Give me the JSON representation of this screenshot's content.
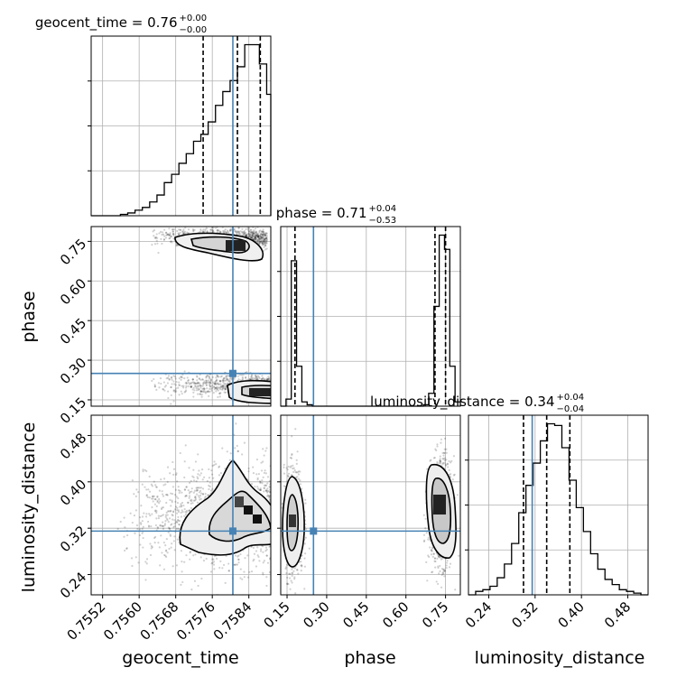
{
  "chart_data": {
    "type": "corner",
    "parameters": [
      {
        "name": "geocent_time",
        "label": "geocent_time",
        "median": "0.76",
        "plus": "+0.00",
        "minus": "−0.00",
        "ticks": [
          "0.7552",
          "0.7560",
          "0.7568",
          "0.7576",
          "0.7584"
        ],
        "range": [
          0.75495,
          0.75888
        ],
        "tick_values": [
          0.7552,
          0.756,
          0.7568,
          0.7576,
          0.7584
        ],
        "truth": 0.75805,
        "quantiles": [
          0.7574,
          0.75815,
          0.75865
        ]
      },
      {
        "name": "phase",
        "label": "phase",
        "median": "0.71",
        "plus": "+0.04",
        "minus": "−0.53",
        "ticks": [
          "0.15",
          "0.30",
          "0.45",
          "0.60",
          "0.75"
        ],
        "range": [
          0.126,
          0.806
        ],
        "tick_values": [
          0.15,
          0.3,
          0.45,
          0.6,
          0.75
        ],
        "truth": 0.25,
        "quantiles": [
          0.18,
          0.71,
          0.75
        ]
      },
      {
        "name": "luminosity_distance",
        "label": "luminosity_distance",
        "median": "0.34",
        "plus": "+0.04",
        "minus": "−0.04",
        "ticks": [
          "0.24",
          "0.32",
          "0.40",
          "0.48"
        ],
        "range": [
          0.205,
          0.515
        ],
        "tick_values": [
          0.24,
          0.32,
          0.4,
          0.48
        ],
        "truth": 0.315,
        "quantiles": [
          0.3,
          0.34,
          0.38
        ]
      }
    ],
    "histograms": [
      {
        "param": "geocent_time",
        "edges": [
          0.75495,
          0.75511,
          0.75527,
          0.75543,
          0.75559,
          0.75575,
          0.75591,
          0.75607,
          0.75623,
          0.75639,
          0.75655,
          0.75671,
          0.75687,
          0.75703,
          0.75719,
          0.75735,
          0.75751,
          0.75767,
          0.75783,
          0.75799,
          0.75815,
          0.75831,
          0.75847,
          0.75863,
          0.75879,
          0.75888
        ],
        "counts": [
          0,
          0,
          0,
          0,
          1,
          2,
          4,
          6,
          10,
          15,
          24,
          30,
          38,
          45,
          54,
          59,
          68,
          80,
          90,
          98,
          108,
          124,
          124,
          110,
          88
        ]
      },
      {
        "param": "phase",
        "edges": [
          0.126,
          0.146,
          0.166,
          0.186,
          0.206,
          0.226,
          0.246,
          0.266,
          0.286,
          0.306,
          0.326,
          0.346,
          0.366,
          0.386,
          0.406,
          0.426,
          0.446,
          0.466,
          0.486,
          0.506,
          0.526,
          0.546,
          0.566,
          0.586,
          0.606,
          0.626,
          0.646,
          0.666,
          0.686,
          0.706,
          0.726,
          0.746,
          0.766,
          0.786,
          0.806
        ],
        "counts": [
          0,
          5,
          102,
          28,
          3,
          1,
          0,
          0,
          0,
          0,
          0,
          0,
          0,
          0,
          0,
          0,
          0,
          0,
          0,
          0,
          0,
          0,
          0,
          0,
          0,
          0,
          0,
          1,
          9,
          70,
          120,
          110,
          28,
          3
        ]
      },
      {
        "param": "luminosity_distance",
        "edges": [
          0.205,
          0.2174,
          0.2298,
          0.2422,
          0.2546,
          0.267,
          0.2794,
          0.2918,
          0.3042,
          0.3166,
          0.329,
          0.3414,
          0.3538,
          0.3662,
          0.3786,
          0.391,
          0.4034,
          0.4158,
          0.4282,
          0.4406,
          0.453,
          0.4654,
          0.4778,
          0.4902,
          0.5026,
          0.515
        ],
        "counts": [
          0,
          2,
          3,
          5,
          10,
          18,
          30,
          48,
          64,
          77,
          90,
          100,
          99,
          86,
          67,
          51,
          37,
          24,
          15,
          9,
          6,
          3,
          2,
          1,
          0
        ]
      }
    ],
    "truth_markers": [
      {
        "x_param": "geocent_time",
        "y_param": "phase",
        "x": 0.75805,
        "y": 0.25
      },
      {
        "x_param": "geocent_time",
        "y_param": "luminosity_distance",
        "x": 0.75805,
        "y": 0.315
      },
      {
        "x_param": "phase",
        "y_param": "luminosity_distance",
        "x": 0.25,
        "y": 0.315
      }
    ],
    "truth_color": "#4682b4",
    "histogram_color": "#000000",
    "grid": true
  }
}
